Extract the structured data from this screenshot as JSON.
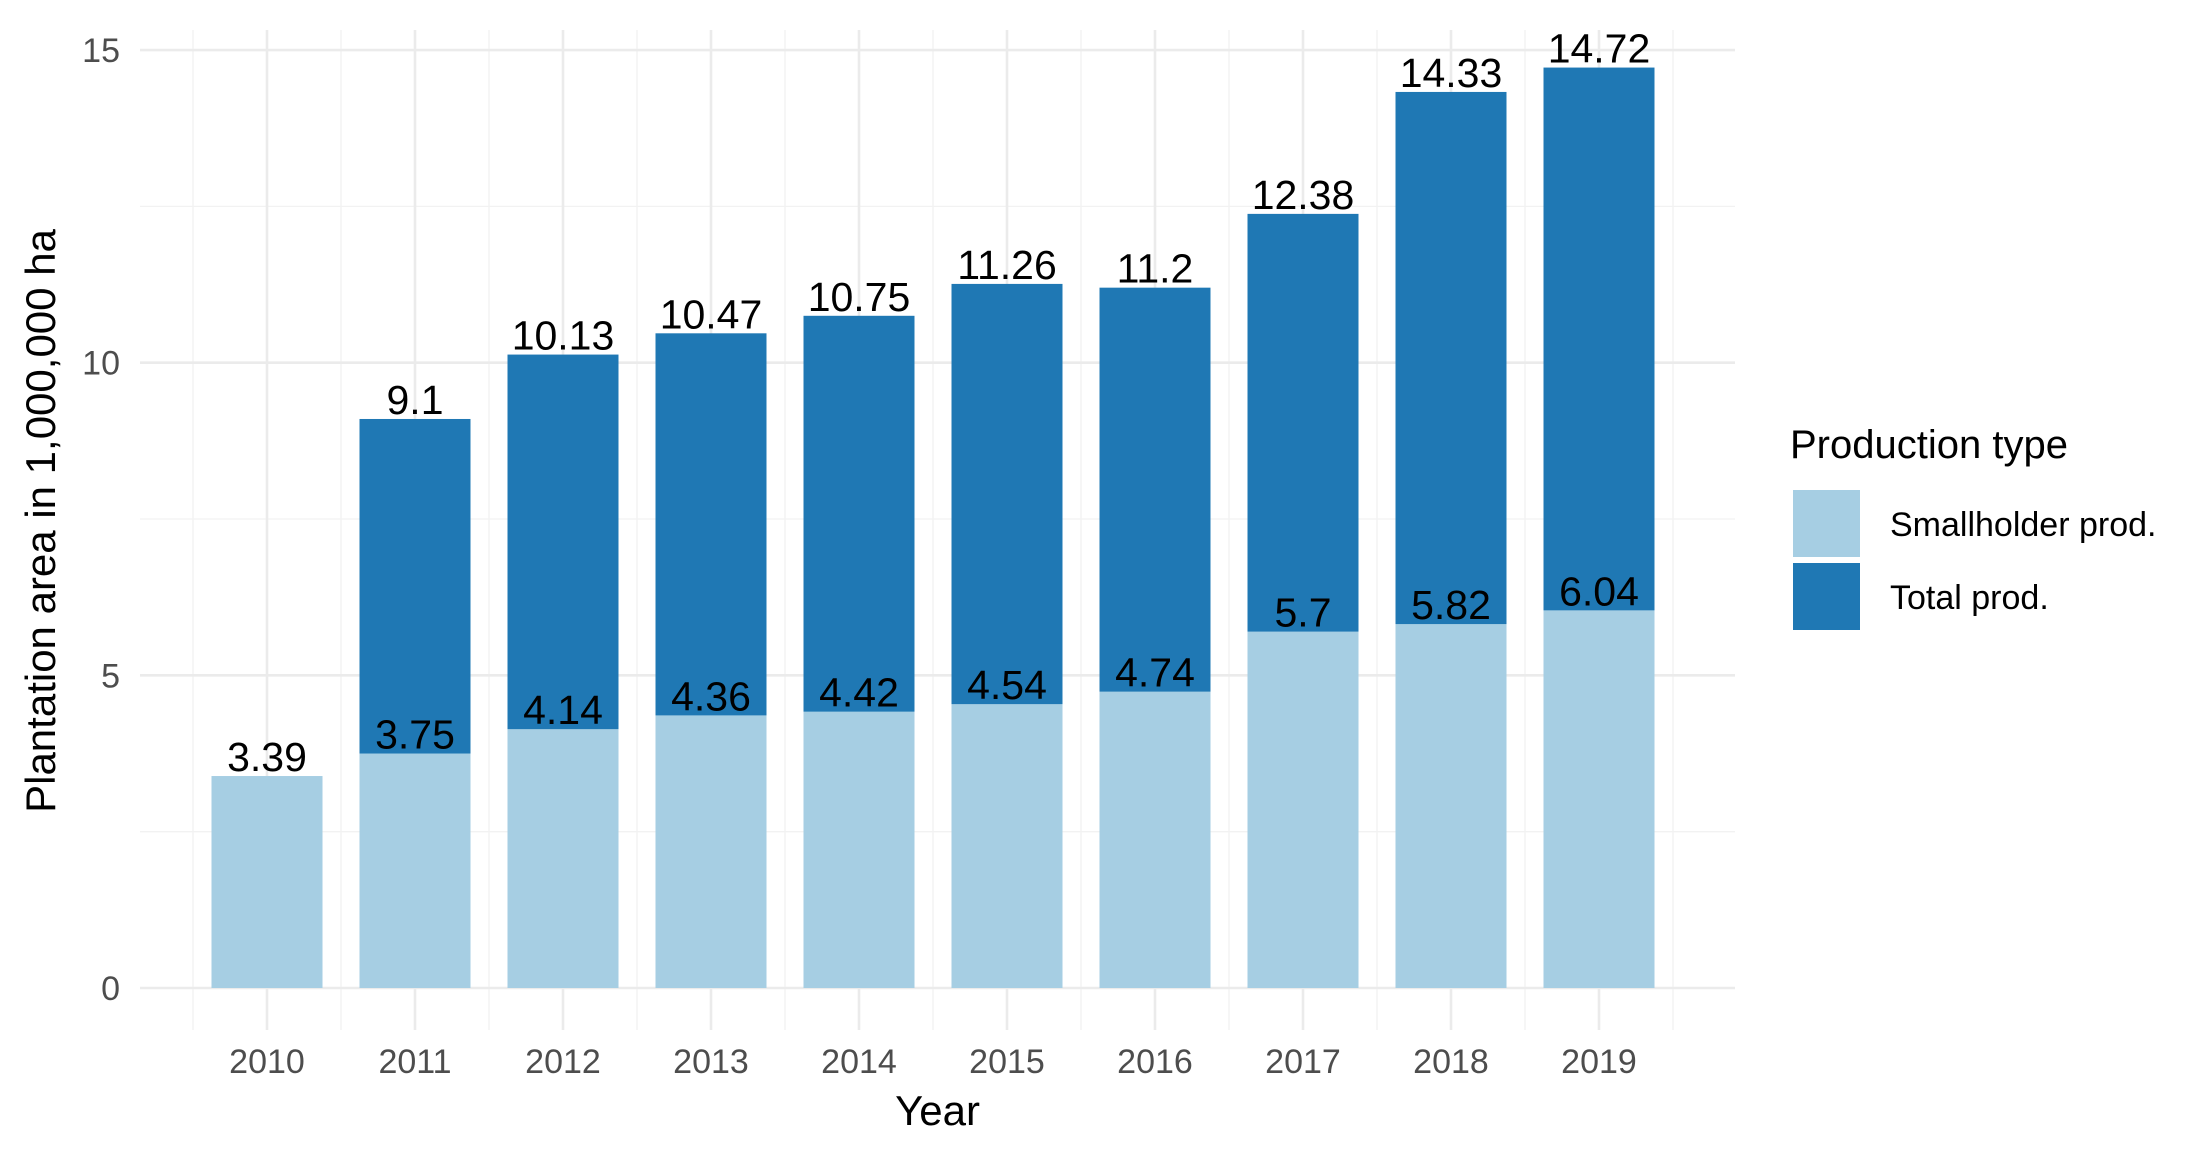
{
  "chart_data": {
    "type": "bar",
    "stacked": false,
    "title": "",
    "xlabel": "Year",
    "ylabel": "Plantation area in 1,000,000 ha",
    "ylim": [
      0,
      15
    ],
    "yticks": [
      0,
      5,
      10,
      15
    ],
    "grid": true,
    "legend": {
      "title": "Production type",
      "position": "right"
    },
    "categories": [
      "2010",
      "2011",
      "2012",
      "2013",
      "2014",
      "2015",
      "2016",
      "2017",
      "2018",
      "2019"
    ],
    "series": [
      {
        "name": "Total prod.",
        "color": "#1f78b4",
        "values": [
          null,
          9.1,
          10.13,
          10.47,
          10.75,
          11.26,
          11.2,
          12.38,
          14.33,
          14.72
        ],
        "labels": [
          "",
          "9.1",
          "10.13",
          "10.47",
          "10.75",
          "11.26",
          "11.2",
          "12.38",
          "14.33",
          "14.72"
        ]
      },
      {
        "name": "Smallholder prod.",
        "color": "#a6cee3",
        "values": [
          3.39,
          3.75,
          4.14,
          4.36,
          4.42,
          4.54,
          4.74,
          5.7,
          5.82,
          6.04
        ],
        "labels": [
          "3.39",
          "3.75",
          "4.14",
          "4.36",
          "4.42",
          "4.54",
          "4.74",
          "5.7",
          "5.82",
          "6.04"
        ]
      }
    ],
    "legend_order": [
      "Smallholder prod.",
      "Total prod."
    ]
  }
}
